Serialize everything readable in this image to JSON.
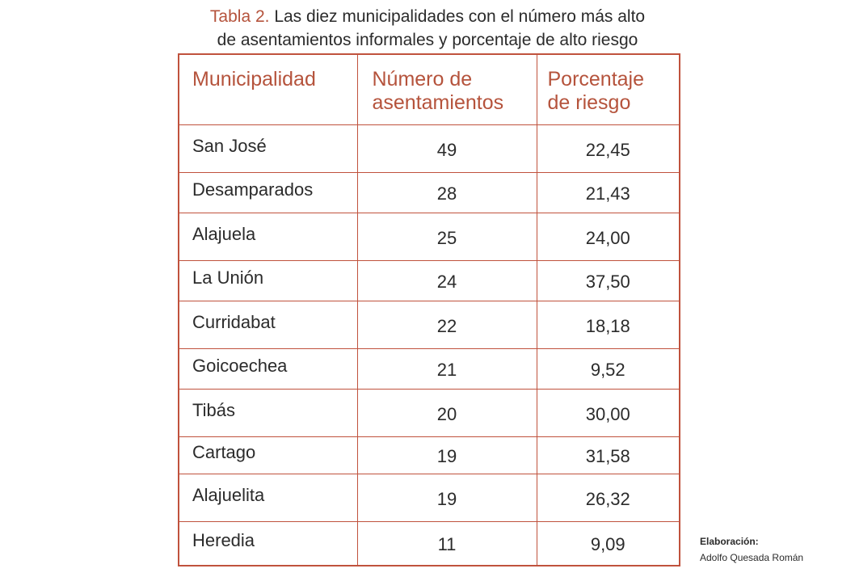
{
  "caption": {
    "label": "Tabla 2.",
    "line1": "Las diez municipalidades con el número más alto",
    "line2": "de asentamientos informales y porcentaje de alto riesgo"
  },
  "table": {
    "headers": {
      "municipalidad": "Municipalidad",
      "asentamientos_line1": "Número de",
      "asentamientos_line2": "asentamientos",
      "riesgo_line1": "Porcentaje",
      "riesgo_line2": "de riesgo"
    },
    "rows": [
      {
        "municipalidad": "San José",
        "asentamientos": "49",
        "riesgo": "22,45"
      },
      {
        "municipalidad": "Desamparados",
        "asentamientos": "28",
        "riesgo": "21,43"
      },
      {
        "municipalidad": "Alajuela",
        "asentamientos": "25",
        "riesgo": "24,00"
      },
      {
        "municipalidad": "La Unión",
        "asentamientos": "24",
        "riesgo": "37,50"
      },
      {
        "municipalidad": "Curridabat",
        "asentamientos": "22",
        "riesgo": "18,18"
      },
      {
        "municipalidad": "Goicoechea",
        "asentamientos": "21",
        "riesgo": "9,52"
      },
      {
        "municipalidad": "Tibás",
        "asentamientos": "20",
        "riesgo": "30,00"
      },
      {
        "municipalidad": "Cartago",
        "asentamientos": "19",
        "riesgo": "31,58"
      },
      {
        "municipalidad": "Alajuelita",
        "asentamientos": "19",
        "riesgo": "26,32"
      },
      {
        "municipalidad": "Heredia",
        "asentamientos": "11",
        "riesgo": "9,09"
      }
    ]
  },
  "credit": {
    "title": "Elaboración:",
    "author": "Adolfo Quesada Román"
  },
  "colors": {
    "accent": "#b5533c",
    "border": "#c0523d",
    "text": "#2b2b2b"
  }
}
